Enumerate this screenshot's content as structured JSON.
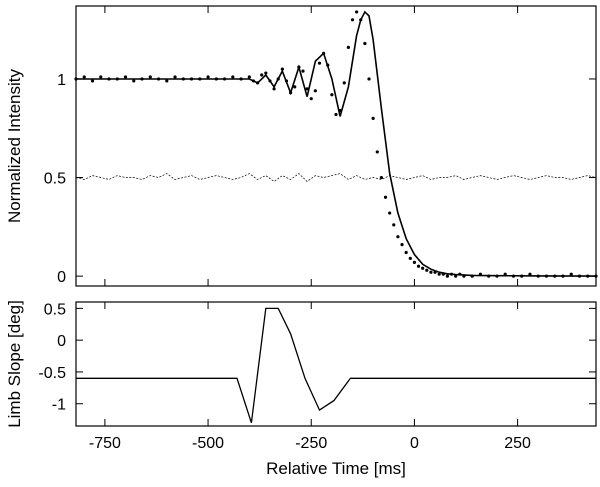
{
  "chart_data": [
    {
      "type": "line",
      "xlabel": "",
      "ylabel": "Normalized Intensity",
      "xlim": [
        -820,
        440
      ],
      "ylim": [
        -0.05,
        1.37
      ],
      "x_ticks": [
        -750,
        -500,
        -250,
        0,
        250
      ],
      "y_ticks": [
        0,
        0.5,
        1
      ],
      "y_tick_labels": [
        "0",
        "0.5",
        "1"
      ],
      "series": [
        {
          "style": "dots",
          "x": [
            -820,
            -800,
            -780,
            -760,
            -740,
            -720,
            -700,
            -680,
            -660,
            -640,
            -620,
            -600,
            -580,
            -560,
            -540,
            -520,
            -500,
            -480,
            -460,
            -440,
            -420,
            -400,
            -390,
            -380,
            -370,
            -360,
            -350,
            -340,
            -330,
            -320,
            -310,
            -300,
            -290,
            -280,
            -270,
            -260,
            -250,
            -240,
            -230,
            -220,
            -210,
            -200,
            -190,
            -180,
            -170,
            -160,
            -150,
            -140,
            -130,
            -120,
            -110,
            -100,
            -90,
            -80,
            -70,
            -60,
            -50,
            -40,
            -30,
            -20,
            -10,
            0,
            10,
            20,
            30,
            40,
            50,
            60,
            70,
            80,
            90,
            100,
            110,
            120,
            140,
            160,
            180,
            200,
            220,
            240,
            260,
            280,
            300,
            320,
            340,
            360,
            380,
            400,
            420,
            440
          ],
          "y": [
            1.0,
            1.01,
            0.99,
            1.01,
            1.0,
            1.0,
            1.01,
            0.99,
            1.0,
            1.01,
            1.0,
            0.99,
            1.01,
            1.0,
            1.0,
            1.0,
            1.01,
            1.0,
            1.0,
            1.01,
            1.0,
            1.01,
            0.99,
            0.98,
            1.02,
            1.03,
            0.99,
            0.95,
            1.0,
            1.05,
            0.99,
            0.93,
            0.96,
            1.06,
            1.04,
            0.95,
            0.9,
            0.94,
            1.08,
            1.13,
            1.07,
            0.92,
            0.82,
            0.84,
            0.98,
            1.16,
            1.3,
            1.34,
            1.3,
            1.18,
            1.0,
            0.8,
            0.63,
            0.5,
            0.4,
            0.32,
            0.26,
            0.2,
            0.16,
            0.12,
            0.09,
            0.07,
            0.05,
            0.04,
            0.03,
            0.02,
            0.02,
            0.01,
            0.01,
            0.0,
            0.01,
            0.0,
            0.01,
            0.0,
            0.0,
            0.01,
            0.0,
            0.0,
            0.01,
            0.0,
            0.0,
            0.01,
            0.0,
            0.0,
            0.0,
            0.0,
            0.01,
            0.0,
            0.0,
            0.0
          ]
        },
        {
          "style": "solid",
          "x": [
            -820,
            -700,
            -600,
            -500,
            -440,
            -400,
            -380,
            -360,
            -340,
            -320,
            -300,
            -280,
            -260,
            -240,
            -220,
            -200,
            -180,
            -160,
            -140,
            -130,
            -120,
            -110,
            -100,
            -80,
            -60,
            -40,
            -20,
            0,
            20,
            40,
            60,
            80,
            100,
            140,
            200,
            300,
            440
          ],
          "y": [
            1.0,
            1.0,
            1.0,
            1.0,
            1.0,
            1.0,
            0.98,
            1.02,
            0.96,
            1.04,
            0.93,
            1.06,
            0.91,
            1.09,
            1.13,
            1.0,
            0.81,
            0.96,
            1.22,
            1.3,
            1.34,
            1.32,
            1.2,
            0.85,
            0.52,
            0.32,
            0.19,
            0.11,
            0.06,
            0.035,
            0.02,
            0.012,
            0.008,
            0.004,
            0.002,
            0.001,
            0.0
          ]
        },
        {
          "style": "dashed",
          "x": [
            -820,
            -800,
            -780,
            -760,
            -740,
            -720,
            -700,
            -680,
            -660,
            -640,
            -620,
            -600,
            -580,
            -560,
            -540,
            -520,
            -500,
            -480,
            -460,
            -440,
            -420,
            -400,
            -380,
            -360,
            -340,
            -320,
            -300,
            -280,
            -260,
            -240,
            -220,
            -200,
            -180,
            -160,
            -140,
            -120,
            -100,
            -80,
            -60,
            -40,
            -20,
            0,
            20,
            40,
            60,
            80,
            100,
            120,
            140,
            160,
            180,
            200,
            220,
            240,
            260,
            280,
            300,
            320,
            340,
            360,
            380,
            400,
            420,
            440
          ],
          "y": [
            0.5,
            0.49,
            0.51,
            0.5,
            0.49,
            0.51,
            0.5,
            0.5,
            0.49,
            0.51,
            0.5,
            0.52,
            0.49,
            0.5,
            0.51,
            0.49,
            0.5,
            0.51,
            0.5,
            0.49,
            0.5,
            0.52,
            0.49,
            0.51,
            0.48,
            0.51,
            0.49,
            0.52,
            0.48,
            0.51,
            0.5,
            0.51,
            0.52,
            0.49,
            0.51,
            0.49,
            0.5,
            0.49,
            0.51,
            0.5,
            0.49,
            0.5,
            0.51,
            0.49,
            0.5,
            0.5,
            0.51,
            0.49,
            0.5,
            0.51,
            0.5,
            0.49,
            0.5,
            0.51,
            0.5,
            0.49,
            0.5,
            0.51,
            0.5,
            0.5,
            0.49,
            0.5,
            0.51,
            0.5
          ]
        }
      ]
    },
    {
      "type": "line",
      "xlabel": "Relative Time [ms]",
      "ylabel": "Limb Slope [deg]",
      "xlim": [
        -820,
        440
      ],
      "ylim": [
        -1.35,
        0.6
      ],
      "x_ticks": [
        -750,
        -500,
        -250,
        0,
        250
      ],
      "x_tick_labels": [
        "-750",
        "-500",
        "-250",
        "0",
        "250"
      ],
      "y_ticks": [
        -1,
        -0.5,
        0,
        0.5
      ],
      "y_tick_labels": [
        "-1",
        "-0.5",
        "0",
        "0.5"
      ],
      "series": [
        {
          "style": "solid",
          "x": [
            -820,
            -430,
            -395,
            -360,
            -330,
            -300,
            -265,
            -230,
            -195,
            -155,
            440
          ],
          "y": [
            -0.6,
            -0.6,
            -1.3,
            0.5,
            0.5,
            0.1,
            -0.6,
            -1.1,
            -0.95,
            -0.6,
            -0.6
          ]
        }
      ]
    }
  ]
}
